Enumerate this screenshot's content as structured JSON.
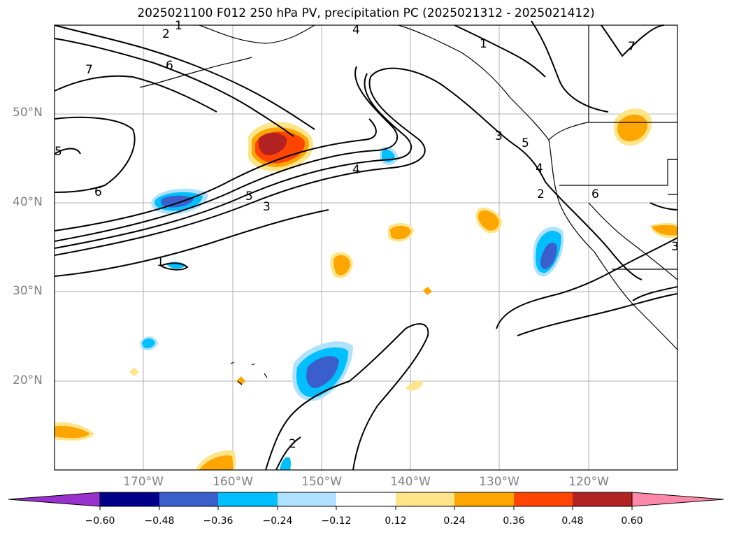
{
  "title": "2025021100 F012 250 hPa PV, precipitation PC (2025021312 - 2025021412)",
  "latitude_labels": [
    "50°N",
    "40°N",
    "30°N",
    "20°N"
  ],
  "longitude_labels": [
    "170°W",
    "160°W",
    "150°W",
    "140°W",
    "130°W",
    "120°W"
  ],
  "contour_labels": [
    "1",
    "2",
    "4",
    "1",
    "7",
    "7",
    "6",
    "5",
    "6",
    "4",
    "5",
    "3",
    "3",
    "5",
    "4",
    "2",
    "6",
    "1",
    "2",
    "3"
  ],
  "colorbar": {
    "ticks": [
      "−0.60",
      "−0.48",
      "−0.36",
      "−0.24",
      "−0.12",
      "0.12",
      "0.24",
      "0.36",
      "0.48",
      "0.60"
    ],
    "colors": [
      "#9932cc",
      "#00008b",
      "#3a5fcd",
      "#00bfff",
      "#b0e2ff",
      "#ffffff",
      "#ffe58a",
      "#ffa500",
      "#ff4500",
      "#b22222",
      "#ff88aa"
    ]
  }
}
